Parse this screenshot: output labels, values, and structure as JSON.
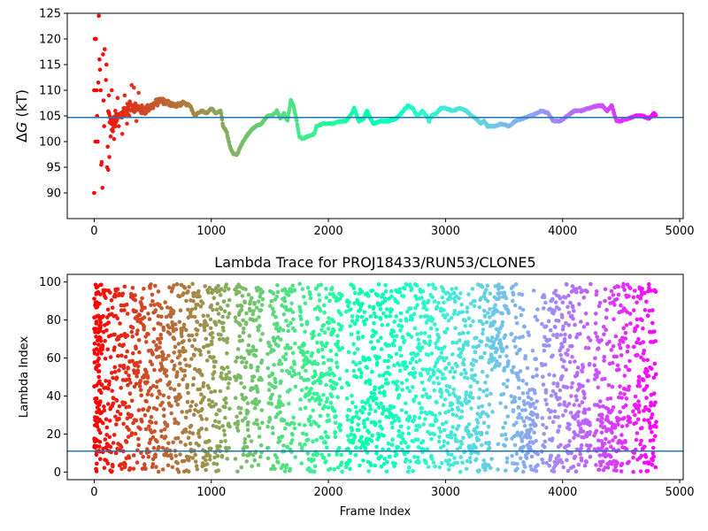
{
  "chart_data": [
    {
      "type": "scatter",
      "title": "",
      "xlabel": "",
      "ylabel": "ΔG (kT)",
      "ylabel_parts": {
        "prefix": "Δ",
        "var": "G",
        "suffix": " (kT)"
      },
      "xlim": [
        -230,
        5030
      ],
      "ylim": [
        85,
        125
      ],
      "xticks": [
        0,
        1000,
        2000,
        3000,
        4000,
        5000
      ],
      "xtick_labels": [
        "0",
        "1000",
        "2000",
        "3000",
        "4000",
        "5000"
      ],
      "yticks": [
        90,
        95,
        100,
        105,
        110,
        115,
        120,
        125
      ],
      "ytick_labels": [
        "90",
        "95",
        "100",
        "105",
        "110",
        "115",
        "120",
        "125"
      ],
      "hline": {
        "y": 104.7,
        "color": "#1f77b4"
      },
      "colormap": "rainbow (color by frame index, red at frame 0 to violet at frame 4800)",
      "grid": false,
      "legend": "none",
      "trace": [
        [
          120,
          105.5
        ],
        [
          150,
          103
        ],
        [
          200,
          104.5
        ],
        [
          260,
          106
        ],
        [
          320,
          107
        ],
        [
          380,
          106.5
        ],
        [
          420,
          106
        ],
        [
          500,
          107
        ],
        [
          560,
          108
        ],
        [
          640,
          107.5
        ],
        [
          700,
          107
        ],
        [
          760,
          107.5
        ],
        [
          820,
          107
        ],
        [
          860,
          105
        ],
        [
          880,
          105.5
        ],
        [
          920,
          106
        ],
        [
          960,
          105.5
        ],
        [
          1000,
          106.5
        ],
        [
          1040,
          105.5
        ],
        [
          1080,
          106
        ],
        [
          1100,
          103
        ],
        [
          1130,
          102
        ],
        [
          1160,
          99
        ],
        [
          1190,
          97.5
        ],
        [
          1220,
          97.5
        ],
        [
          1240,
          98.5
        ],
        [
          1270,
          100
        ],
        [
          1300,
          101
        ],
        [
          1330,
          102
        ],
        [
          1380,
          103
        ],
        [
          1430,
          103.5
        ],
        [
          1480,
          105
        ],
        [
          1520,
          105
        ],
        [
          1560,
          106
        ],
        [
          1590,
          104.5
        ],
        [
          1620,
          105.5
        ],
        [
          1650,
          104
        ],
        [
          1680,
          108
        ],
        [
          1700,
          107
        ],
        [
          1730,
          104
        ],
        [
          1750,
          101
        ],
        [
          1780,
          100.5
        ],
        [
          1820,
          101
        ],
        [
          1880,
          101.5
        ],
        [
          1900,
          103
        ],
        [
          1960,
          103.5
        ],
        [
          2050,
          103.5
        ],
        [
          2100,
          104
        ],
        [
          2150,
          104
        ],
        [
          2200,
          105.5
        ],
        [
          2220,
          106.5
        ],
        [
          2260,
          104
        ],
        [
          2300,
          104.5
        ],
        [
          2330,
          106
        ],
        [
          2360,
          104.5
        ],
        [
          2380,
          103.5
        ],
        [
          2440,
          104
        ],
        [
          2520,
          104
        ],
        [
          2580,
          104.5
        ],
        [
          2640,
          106
        ],
        [
          2680,
          107
        ],
        [
          2720,
          106.5
        ],
        [
          2760,
          105
        ],
        [
          2800,
          106
        ],
        [
          2840,
          105
        ],
        [
          2860,
          104
        ],
        [
          2880,
          105
        ],
        [
          2920,
          105.5
        ],
        [
          2960,
          106.5
        ],
        [
          3000,
          106.5
        ],
        [
          3060,
          106
        ],
        [
          3120,
          106.5
        ],
        [
          3180,
          106
        ],
        [
          3220,
          105
        ],
        [
          3260,
          104.5
        ],
        [
          3300,
          103.5
        ],
        [
          3330,
          104
        ],
        [
          3360,
          103
        ],
        [
          3420,
          103
        ],
        [
          3480,
          103.5
        ],
        [
          3540,
          103
        ],
        [
          3600,
          104
        ],
        [
          3660,
          104.5
        ],
        [
          3720,
          105
        ],
        [
          3780,
          105.5
        ],
        [
          3820,
          106
        ],
        [
          3880,
          105.5
        ],
        [
          3920,
          104
        ],
        [
          3980,
          104
        ],
        [
          4040,
          105
        ],
        [
          4100,
          106
        ],
        [
          4160,
          106
        ],
        [
          4220,
          106.5
        ],
        [
          4300,
          107
        ],
        [
          4340,
          107
        ],
        [
          4380,
          106
        ],
        [
          4420,
          107
        ],
        [
          4460,
          104
        ],
        [
          4500,
          104
        ],
        [
          4560,
          104.5
        ],
        [
          4620,
          105
        ],
        [
          4680,
          105
        ],
        [
          4740,
          104.5
        ],
        [
          4780,
          105.5
        ],
        [
          4800,
          105
        ]
      ],
      "early_points": [
        [
          0,
          90
        ],
        [
          10,
          100
        ],
        [
          0,
          110
        ],
        [
          20,
          110
        ],
        [
          5,
          120
        ],
        [
          15,
          120
        ],
        [
          30,
          100
        ],
        [
          25,
          105
        ],
        [
          35,
          111.5
        ],
        [
          40,
          124.5
        ],
        [
          45,
          116
        ],
        [
          50,
          114
        ],
        [
          55,
          110
        ],
        [
          60,
          95.5
        ],
        [
          65,
          96
        ],
        [
          70,
          91
        ],
        [
          75,
          117
        ],
        [
          80,
          108
        ],
        [
          85,
          103
        ],
        [
          90,
          118
        ],
        [
          100,
          112
        ],
        [
          105,
          115
        ],
        [
          110,
          95
        ],
        [
          115,
          99
        ],
        [
          120,
          94.5
        ],
        [
          125,
          109
        ],
        [
          130,
          97
        ],
        [
          140,
          101
        ],
        [
          150,
          110
        ],
        [
          160,
          102
        ],
        [
          170,
          100.5
        ],
        [
          180,
          106
        ],
        [
          190,
          104
        ],
        [
          200,
          108.5
        ],
        [
          210,
          103
        ],
        [
          220,
          105
        ],
        [
          240,
          101.5
        ],
        [
          260,
          109
        ],
        [
          280,
          103.5
        ],
        [
          300,
          105
        ],
        [
          320,
          111
        ],
        [
          340,
          110.5
        ],
        [
          360,
          104
        ],
        [
          380,
          109.5
        ]
      ]
    },
    {
      "type": "scatter",
      "title": "Lambda Trace for PROJ18433/RUN53/CLONE5",
      "xlabel": "Frame Index",
      "ylabel": "Lambda Index",
      "xlim": [
        -230,
        5030
      ],
      "ylim": [
        -4,
        104
      ],
      "xticks": [
        0,
        1000,
        2000,
        3000,
        4000,
        5000
      ],
      "xtick_labels": [
        "0",
        "1000",
        "2000",
        "3000",
        "4000",
        "5000"
      ],
      "yticks": [
        0,
        20,
        40,
        60,
        80,
        100
      ],
      "ytick_labels": [
        "0",
        "20",
        "40",
        "60",
        "80",
        "100"
      ],
      "hline": {
        "y": 11,
        "color": "#1f77b4"
      },
      "colormap": "rainbow (color by frame index, red at frame 0 to violet at frame 4800)",
      "grid": false,
      "legend": "none",
      "x_range": [
        0,
        4800
      ],
      "lambda_range": [
        0,
        99
      ],
      "gaps": [
        [
          1160,
          1200
        ],
        [
          1440,
          1480
        ],
        [
          1720,
          1750
        ],
        [
          2120,
          2150
        ],
        [
          3540,
          3560
        ],
        [
          3790,
          3820
        ],
        [
          3870,
          3880
        ],
        [
          4240,
          4270
        ],
        [
          4580,
          4600
        ]
      ]
    }
  ]
}
